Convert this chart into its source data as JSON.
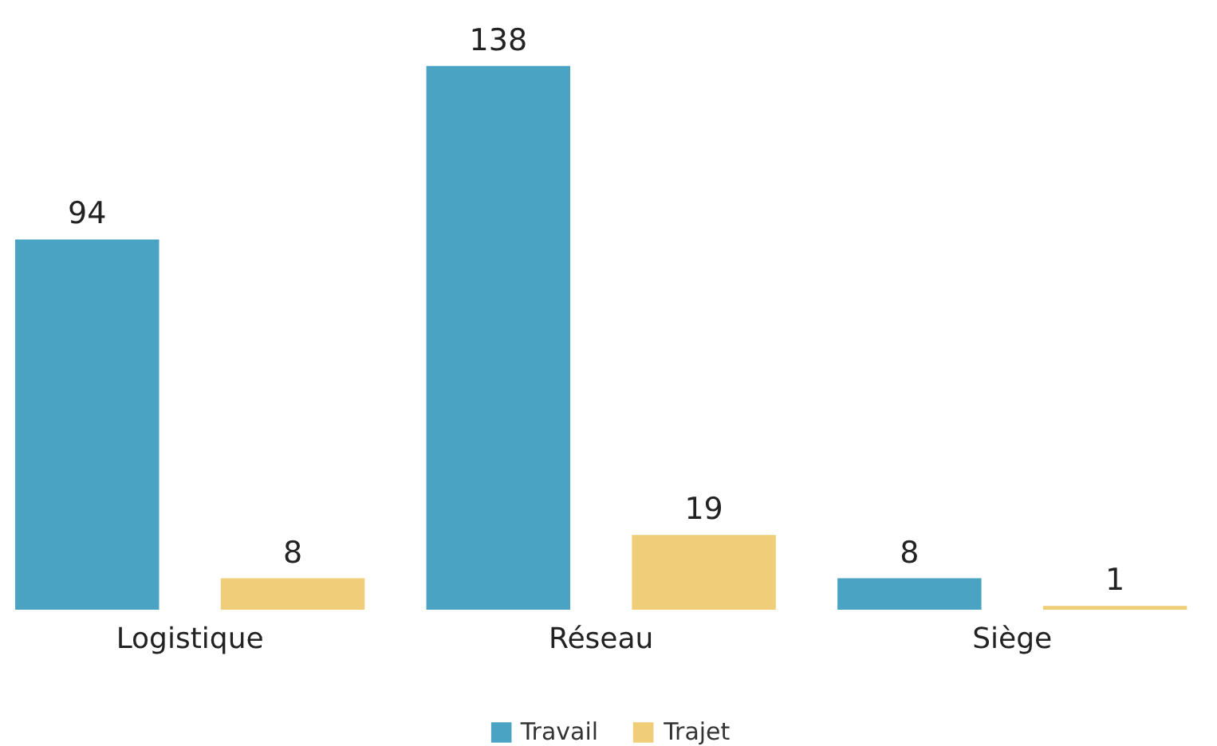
{
  "chart_data": {
    "type": "bar",
    "categories": [
      "Logistique",
      "Réseau",
      "Siège"
    ],
    "series": [
      {
        "name": "Travail",
        "color": "#4ba3c3",
        "values": [
          94,
          138,
          8
        ]
      },
      {
        "name": "Trajet",
        "color": "#f0cd78",
        "values": [
          8,
          19,
          1
        ]
      }
    ],
    "data_labels": true,
    "legend": "bottom",
    "grid": false
  }
}
